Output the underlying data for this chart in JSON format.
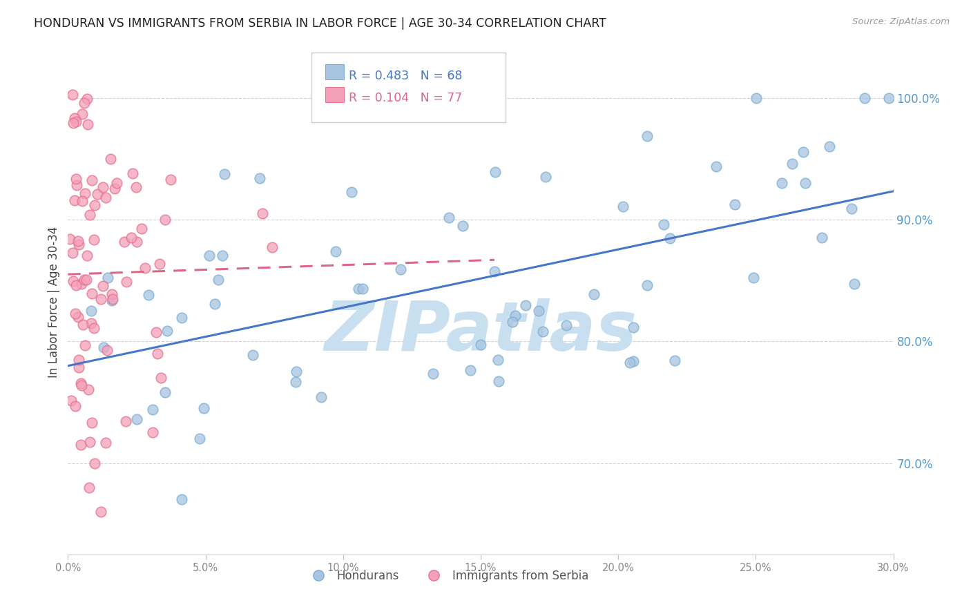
{
  "title": "HONDURAN VS IMMIGRANTS FROM SERBIA IN LABOR FORCE | AGE 30-34 CORRELATION CHART",
  "source": "Source: ZipAtlas.com",
  "ylabel": "In Labor Force | Age 30-34",
  "right_ytick_labels": [
    "70.0%",
    "80.0%",
    "90.0%",
    "100.0%"
  ],
  "right_ytick_values": [
    0.7,
    0.8,
    0.9,
    1.0
  ],
  "xlim": [
    0.0,
    0.3
  ],
  "ylim": [
    0.625,
    1.04
  ],
  "xtick_labels": [
    "0.0%",
    "5.0%",
    "10.0%",
    "15.0%",
    "20.0%",
    "25.0%",
    "30.0%"
  ],
  "xtick_values": [
    0.0,
    0.05,
    0.1,
    0.15,
    0.2,
    0.25,
    0.3
  ],
  "grid_color": "#cccccc",
  "background_color": "#ffffff",
  "watermark_text": "ZIPatlas",
  "watermark_color": "#c8dff0",
  "legend_R_blue": "0.483",
  "legend_N_blue": "68",
  "legend_R_pink": "0.104",
  "legend_N_pink": "77",
  "blue_color": "#a8c4e0",
  "blue_edge_color": "#7aafd4",
  "pink_color": "#f4a0b8",
  "pink_edge_color": "#e87090",
  "blue_line_color": "#4477cc",
  "pink_line_color": "#dd6688",
  "right_axis_color": "#5599cc",
  "legend_blue_text": "#4477cc",
  "legend_pink_text": "#dd6688"
}
